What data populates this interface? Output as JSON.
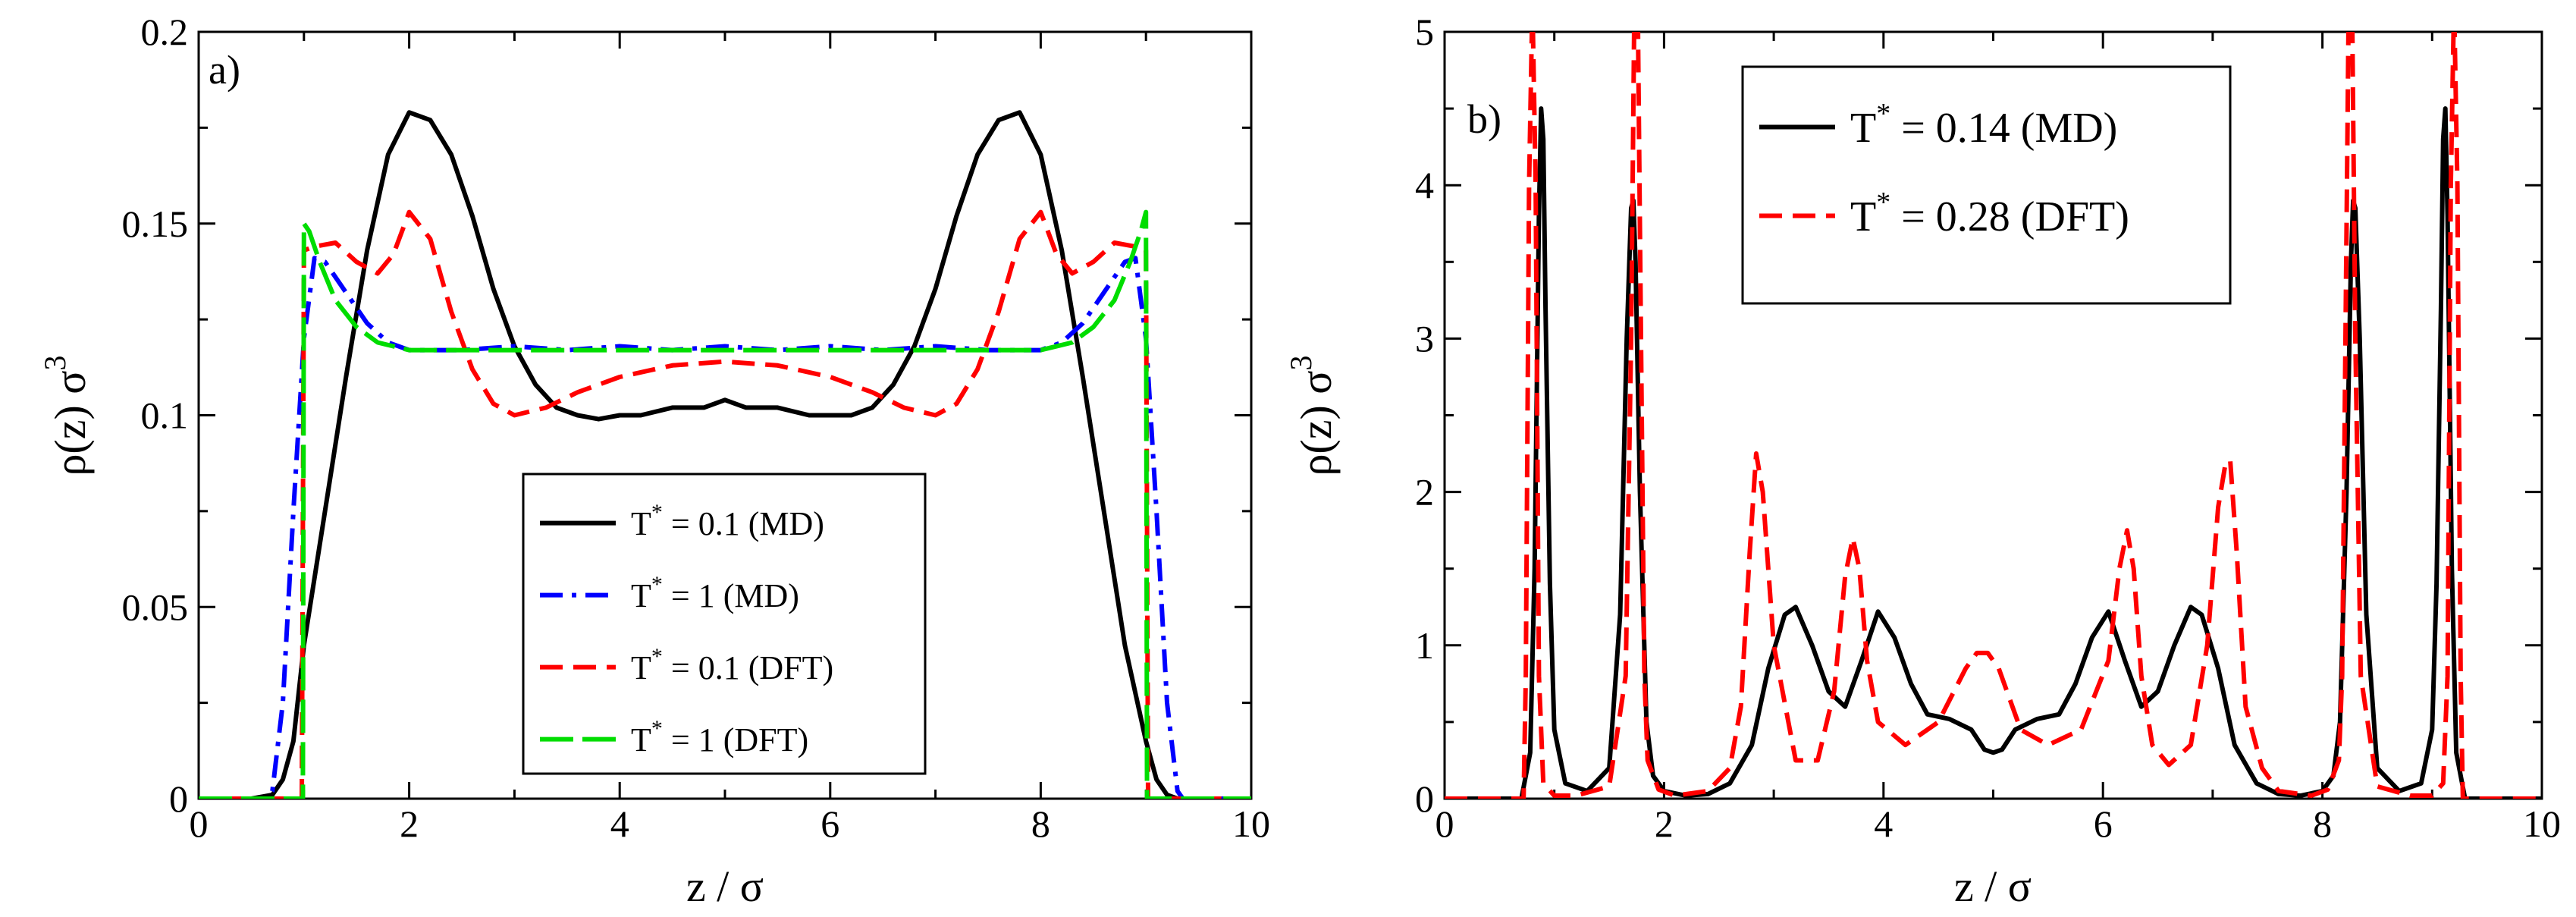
{
  "chart_data": [
    {
      "panel_label": "a)",
      "type": "line",
      "xlabel": "z / σ",
      "ylabel": "ρ(z) σ³",
      "ylabel_main": "ρ(z) σ",
      "ylabel_exp": "3",
      "xlim": [
        0,
        10
      ],
      "ylim": [
        0,
        0.2
      ],
      "xticks": [
        "0",
        "2",
        "4",
        "6",
        "8",
        "10"
      ],
      "yticks": [
        "0",
        "0.05",
        "0.1",
        "0.15",
        "0.2"
      ],
      "legend_position": "lower-center",
      "series": [
        {
          "name": "T* = 0.1 (MD)",
          "legend_base": "T",
          "legend_sup": "*",
          "legend_rest": " = 0.1 (MD)",
          "color": "#000000",
          "dash": "solid",
          "x": [
            0,
            0.5,
            0.7,
            0.8,
            0.9,
            1.0,
            1.2,
            1.4,
            1.6,
            1.8,
            2.0,
            2.2,
            2.4,
            2.6,
            2.8,
            3.0,
            3.2,
            3.4,
            3.6,
            3.8,
            4.0,
            4.2,
            4.5,
            4.8,
            5.0,
            5.2,
            5.5,
            5.8,
            6.0,
            6.2,
            6.4,
            6.6,
            6.8,
            7.0,
            7.2,
            7.4,
            7.6,
            7.8,
            8.0,
            8.2,
            8.4,
            8.6,
            8.8,
            9.0,
            9.1,
            9.2,
            9.3,
            9.5,
            10
          ],
          "y": [
            0,
            0,
            0.001,
            0.005,
            0.015,
            0.04,
            0.075,
            0.11,
            0.143,
            0.168,
            0.179,
            0.177,
            0.168,
            0.152,
            0.133,
            0.118,
            0.108,
            0.102,
            0.1,
            0.099,
            0.1,
            0.1,
            0.102,
            0.102,
            0.104,
            0.102,
            0.102,
            0.1,
            0.1,
            0.1,
            0.102,
            0.108,
            0.118,
            0.133,
            0.152,
            0.168,
            0.177,
            0.179,
            0.168,
            0.143,
            0.11,
            0.075,
            0.04,
            0.015,
            0.005,
            0.001,
            0,
            0,
            0
          ]
        },
        {
          "name": "T* = 1 (MD)",
          "legend_base": "T",
          "legend_sup": "*",
          "legend_rest": " = 1 (MD)",
          "color": "#0000ff",
          "dash": "dashdot",
          "x": [
            0,
            0.65,
            0.7,
            0.8,
            0.9,
            1.0,
            1.1,
            1.2,
            1.4,
            1.6,
            1.8,
            2.0,
            2.5,
            3.0,
            3.5,
            4.0,
            4.5,
            5.0,
            5.5,
            6.0,
            6.5,
            7.0,
            7.5,
            8.0,
            8.2,
            8.4,
            8.6,
            8.8,
            8.9,
            9.0,
            9.1,
            9.2,
            9.3,
            9.35,
            10
          ],
          "y": [
            0,
            0,
            0.002,
            0.025,
            0.075,
            0.12,
            0.141,
            0.14,
            0.132,
            0.124,
            0.119,
            0.117,
            0.117,
            0.118,
            0.117,
            0.118,
            0.117,
            0.118,
            0.117,
            0.118,
            0.117,
            0.118,
            0.117,
            0.117,
            0.119,
            0.124,
            0.132,
            0.14,
            0.141,
            0.12,
            0.075,
            0.025,
            0.002,
            0,
            0
          ]
        },
        {
          "name": "T* = 0.1 (DFT)",
          "legend_base": "T",
          "legend_sup": "*",
          "legend_rest": " = 0.1 (DFT)",
          "color": "#ff0000",
          "dash": "dashed",
          "x": [
            0,
            0.98,
            1.0,
            1.1,
            1.3,
            1.5,
            1.7,
            1.85,
            2.0,
            2.2,
            2.4,
            2.6,
            2.8,
            3.0,
            3.3,
            3.6,
            4.0,
            4.5,
            5.0,
            5.5,
            6.0,
            6.4,
            6.7,
            7.0,
            7.2,
            7.4,
            7.6,
            7.8,
            8.0,
            8.15,
            8.3,
            8.5,
            8.7,
            8.9,
            9.0,
            9.02,
            10
          ],
          "y": [
            0,
            0,
            0.143,
            0.144,
            0.145,
            0.14,
            0.137,
            0.142,
            0.153,
            0.146,
            0.127,
            0.112,
            0.103,
            0.1,
            0.102,
            0.106,
            0.11,
            0.113,
            0.114,
            0.113,
            0.11,
            0.106,
            0.102,
            0.1,
            0.103,
            0.112,
            0.127,
            0.146,
            0.153,
            0.142,
            0.137,
            0.14,
            0.145,
            0.144,
            0.143,
            0,
            0
          ]
        },
        {
          "name": "T* = 1 (DFT)",
          "legend_base": "T",
          "legend_sup": "*",
          "legend_rest": " = 1 (DFT)",
          "color": "#00dd00",
          "dash": "longdash",
          "x": [
            0,
            0.99,
            1.0,
            1.05,
            1.15,
            1.3,
            1.5,
            1.7,
            2.0,
            2.5,
            3.0,
            4.0,
            5.0,
            6.0,
            7.0,
            7.5,
            8.0,
            8.3,
            8.5,
            8.7,
            8.85,
            8.95,
            9.0,
            9.01,
            10
          ],
          "y": [
            0,
            0,
            0.15,
            0.148,
            0.14,
            0.13,
            0.123,
            0.119,
            0.117,
            0.117,
            0.117,
            0.117,
            0.117,
            0.117,
            0.117,
            0.117,
            0.117,
            0.119,
            0.123,
            0.13,
            0.14,
            0.148,
            0.153,
            0,
            0
          ]
        }
      ]
    },
    {
      "panel_label": "b)",
      "type": "line",
      "xlabel": "z / σ",
      "ylabel": "ρ(z) σ³",
      "ylabel_main": "ρ(z) σ",
      "ylabel_exp": "3",
      "xlim": [
        0,
        10
      ],
      "ylim": [
        0,
        5
      ],
      "xticks": [
        "0",
        "2",
        "4",
        "6",
        "8",
        "10"
      ],
      "yticks": [
        "0",
        "1",
        "2",
        "3",
        "4",
        "5"
      ],
      "legend_position": "top-center",
      "series": [
        {
          "name": "T* = 0.14 (MD)",
          "legend_base": "T",
          "legend_sup": "*",
          "legend_rest": " = 0.14 (MD)",
          "color": "#000000",
          "dash": "solid",
          "x": [
            0,
            0.7,
            0.78,
            0.82,
            0.86,
            0.88,
            0.9,
            0.92,
            0.96,
            1.0,
            1.1,
            1.3,
            1.5,
            1.6,
            1.66,
            1.7,
            1.72,
            1.74,
            1.78,
            1.84,
            1.9,
            2.0,
            2.2,
            2.4,
            2.6,
            2.8,
            2.95,
            3.1,
            3.2,
            3.35,
            3.5,
            3.65,
            3.8,
            3.95,
            4.1,
            4.25,
            4.4,
            4.6,
            4.8,
            4.92,
            5.0,
            5.08,
            5.2,
            5.4,
            5.6,
            5.75,
            5.9,
            6.05,
            6.2,
            6.35,
            6.5,
            6.65,
            6.8,
            6.9,
            7.05,
            7.2,
            7.4,
            7.6,
            7.8,
            8.0,
            8.1,
            8.16,
            8.22,
            8.26,
            8.28,
            8.3,
            8.34,
            8.4,
            8.5,
            8.7,
            8.9,
            9.0,
            9.04,
            9.08,
            9.1,
            9.12,
            9.14,
            9.18,
            9.22,
            9.3,
            10
          ],
          "y": [
            0,
            0,
            0.3,
            1.5,
            3.8,
            4.5,
            4.3,
            3.2,
            1.4,
            0.45,
            0.1,
            0.05,
            0.2,
            1.2,
            3.0,
            3.85,
            3.9,
            3.5,
            2.0,
            0.5,
            0.15,
            0.05,
            0.02,
            0.03,
            0.1,
            0.35,
            0.85,
            1.2,
            1.25,
            1.0,
            0.7,
            0.6,
            0.9,
            1.22,
            1.05,
            0.75,
            0.55,
            0.52,
            0.45,
            0.32,
            0.3,
            0.32,
            0.45,
            0.52,
            0.55,
            0.75,
            1.05,
            1.22,
            0.9,
            0.6,
            0.7,
            1.0,
            1.25,
            1.2,
            0.85,
            0.35,
            0.1,
            0.03,
            0.02,
            0.05,
            0.15,
            0.5,
            2.0,
            3.5,
            3.9,
            3.85,
            3.0,
            1.2,
            0.2,
            0.05,
            0.1,
            0.45,
            1.4,
            3.2,
            4.3,
            4.5,
            3.8,
            1.5,
            0.3,
            0,
            0
          ]
        },
        {
          "name": "T* = 0.28 (DFT)",
          "legend_base": "T",
          "legend_sup": "*",
          "legend_rest": " = 0.28 (DFT)",
          "color": "#ff0000",
          "dash": "dashed",
          "x": [
            0,
            0.72,
            0.74,
            0.77,
            0.8,
            0.83,
            0.86,
            0.9,
            1.0,
            1.2,
            1.5,
            1.65,
            1.7,
            1.73,
            1.76,
            1.79,
            1.82,
            1.85,
            1.95,
            2.1,
            2.4,
            2.6,
            2.7,
            2.78,
            2.84,
            2.9,
            3.0,
            3.2,
            3.4,
            3.55,
            3.65,
            3.72,
            3.78,
            3.85,
            3.95,
            4.2,
            4.5,
            4.75,
            4.85,
            4.95,
            5.05,
            5.15,
            5.25,
            5.5,
            5.8,
            6.05,
            6.15,
            6.22,
            6.28,
            6.35,
            6.45,
            6.6,
            6.8,
            6.95,
            7.05,
            7.12,
            7.16,
            7.22,
            7.3,
            7.45,
            7.6,
            7.9,
            8.05,
            8.15,
            8.18,
            8.21,
            8.24,
            8.27,
            8.3,
            8.35,
            8.5,
            8.8,
            9.0,
            9.1,
            9.14,
            9.17,
            9.2,
            9.23,
            9.26,
            9.28,
            10
          ],
          "y": [
            0,
            0,
            0.8,
            4.0,
            5.2,
            4.0,
            0.8,
            0.1,
            0.02,
            0.02,
            0.08,
            0.8,
            3.0,
            5.2,
            5.2,
            3.0,
            0.8,
            0.25,
            0.06,
            0.02,
            0.05,
            0.2,
            0.6,
            1.6,
            2.25,
            2.0,
            1.0,
            0.25,
            0.25,
            0.7,
            1.45,
            1.7,
            1.5,
            0.9,
            0.5,
            0.35,
            0.5,
            0.85,
            0.95,
            0.95,
            0.85,
            0.65,
            0.45,
            0.35,
            0.45,
            0.9,
            1.5,
            1.75,
            1.5,
            0.8,
            0.35,
            0.22,
            0.35,
            1.0,
            1.9,
            2.2,
            2.2,
            1.6,
            0.6,
            0.2,
            0.05,
            0.02,
            0.06,
            0.25,
            0.8,
            3.0,
            5.2,
            5.2,
            3.0,
            0.8,
            0.08,
            0.02,
            0.02,
            0.1,
            0.8,
            4.0,
            5.2,
            4.0,
            0.8,
            0,
            0
          ]
        }
      ]
    }
  ]
}
